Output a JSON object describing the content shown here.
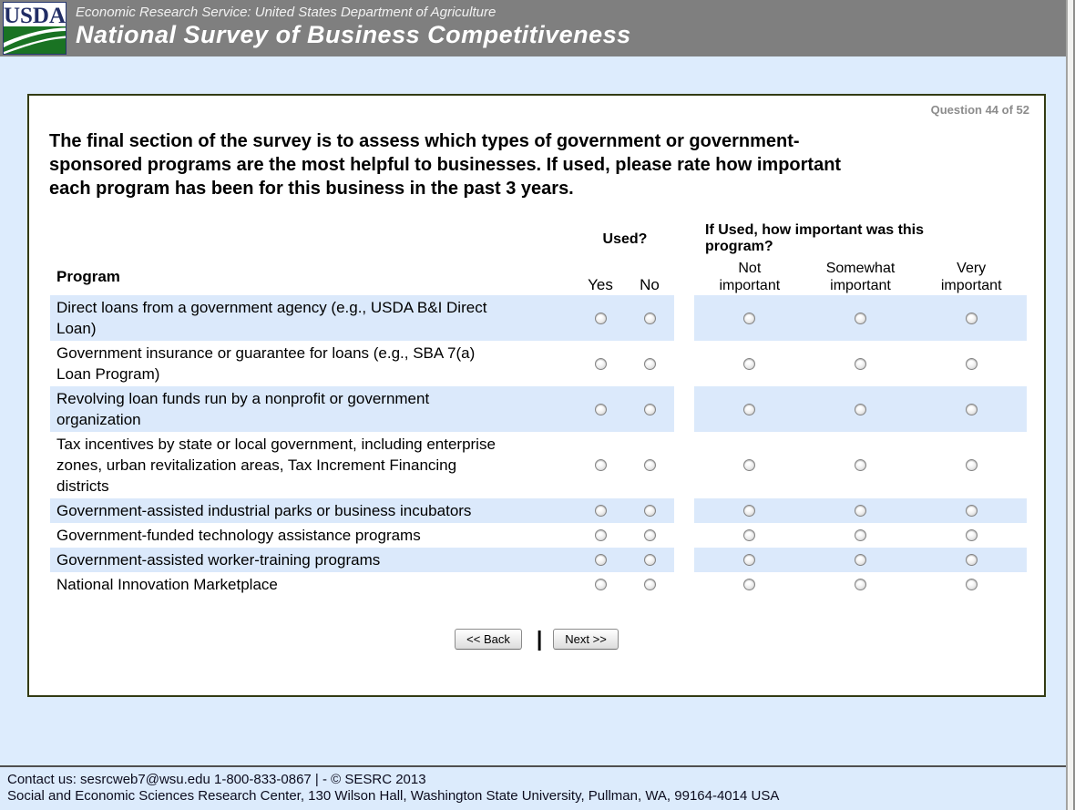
{
  "header": {
    "logo_text": "USDA",
    "agency_line": "Economic Research Service: United States Department of Agriculture",
    "survey_title": "National Survey of Business Competitiveness"
  },
  "question": {
    "counter": "Question 44 of 52",
    "text": "The final section of the survey is to assess which types of government or government-sponsored programs are the most helpful to businesses. If used, please rate how important each program has been for this business in the past 3 years."
  },
  "table": {
    "program_header": "Program",
    "used_header": "Used?",
    "importance_header": "If Used, how important was this program?",
    "yes_label": "Yes",
    "no_label": "No",
    "importance_options": [
      "Not important",
      "Somewhat important",
      "Very important"
    ],
    "rows": [
      {
        "program": "Direct loans from a government agency (e.g., USDA B&I Direct Loan)"
      },
      {
        "program": "Government insurance or guarantee for loans (e.g., SBA 7(a) Loan Program)"
      },
      {
        "program": "Revolving loan funds run by a nonprofit or government organization"
      },
      {
        "program": "Tax incentives by state or local government, including enterprise zones, urban revitalization areas, Tax Increment Financing districts"
      },
      {
        "program": "Government-assisted industrial parks or business incubators"
      },
      {
        "program": "Government-funded technology assistance programs"
      },
      {
        "program": "Government-assisted worker-training programs"
      },
      {
        "program": "National Innovation Marketplace"
      }
    ]
  },
  "buttons": {
    "back": "<< Back",
    "separator": "|",
    "next": "Next >>"
  },
  "footer": {
    "line1": "Contact us: sesrcweb7@wsu.edu 1-800-833-0867 | - © SESRC 2013",
    "line2": "Social and Economic Sciences Research Center, 130 Wilson Hall, Washington State University, Pullman, WA, 99164-4014 USA"
  },
  "colors": {
    "header_background": "#7f7f7f",
    "page_background": "#ddecfd",
    "row_highlight": "#dbe9fb",
    "panel_border": "#333b13",
    "logo_green": "#1a7323",
    "logo_navy": "#212d65",
    "counter_gray": "#8c8c8c",
    "footer_background": "#dcebfc"
  }
}
